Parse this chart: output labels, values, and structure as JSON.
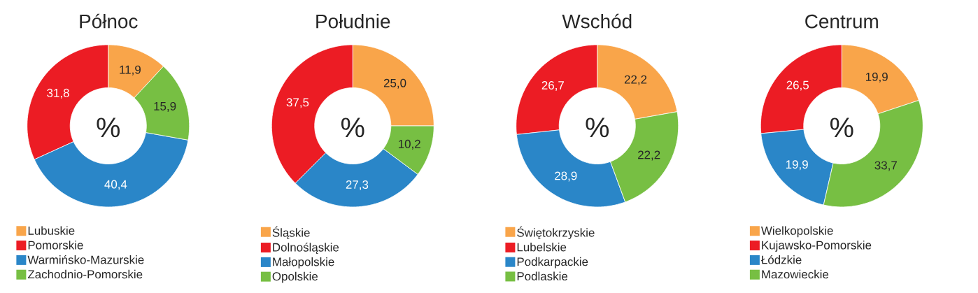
{
  "chart_data": [
    {
      "type": "donut",
      "title": "Północ",
      "categories": [
        "Lubuskie",
        "Pomorskie",
        "Warmińsko-Mazurskie",
        "Zachodnio-Pomorskie"
      ],
      "values": [
        11.9,
        31.8,
        40.4,
        15.9
      ],
      "value_labels": [
        "11,9",
        "31,8",
        "40,4",
        "15,9"
      ],
      "colors": [
        "#f9a54a",
        "#ec1c24",
        "#2a86c8",
        "#77bf43"
      ],
      "legend": "bottom",
      "annotations": [
        "%"
      ]
    },
    {
      "type": "donut",
      "title": "Południe",
      "categories": [
        "Śląskie",
        "Dolnośląskie",
        "Małopolskie",
        "Opolskie"
      ],
      "values": [
        25.0,
        37.5,
        27.3,
        10.2
      ],
      "value_labels": [
        "25,0",
        "37,5",
        "27,3",
        "10,2"
      ],
      "colors": [
        "#f9a54a",
        "#ec1c24",
        "#2a86c8",
        "#77bf43"
      ],
      "legend": "bottom",
      "annotations": [
        "%"
      ]
    },
    {
      "type": "donut",
      "title": "Wschód",
      "categories": [
        "Świętokrzyskie",
        "Lubelskie",
        "Podkarpackie",
        "Podlaskie"
      ],
      "values": [
        22.2,
        26.7,
        28.9,
        22.2
      ],
      "value_labels": [
        "22,2",
        "26,7",
        "28,9",
        "22,2"
      ],
      "colors": [
        "#f9a54a",
        "#ec1c24",
        "#2a86c8",
        "#77bf43"
      ],
      "legend": "bottom",
      "annotations": [
        "%"
      ]
    },
    {
      "type": "donut",
      "title": "Centrum",
      "categories": [
        "Wielkopolskie",
        "Kujawsko-Pomorskie",
        "Łódzkie",
        "Mazowieckie"
      ],
      "values": [
        19.9,
        26.5,
        19.9,
        33.7
      ],
      "value_labels": [
        "19,9",
        "26,5",
        "19,9",
        "33,7"
      ],
      "colors": [
        "#f9a54a",
        "#ec1c24",
        "#2a86c8",
        "#77bf43"
      ],
      "legend": "bottom",
      "annotations": [
        "%"
      ]
    }
  ]
}
